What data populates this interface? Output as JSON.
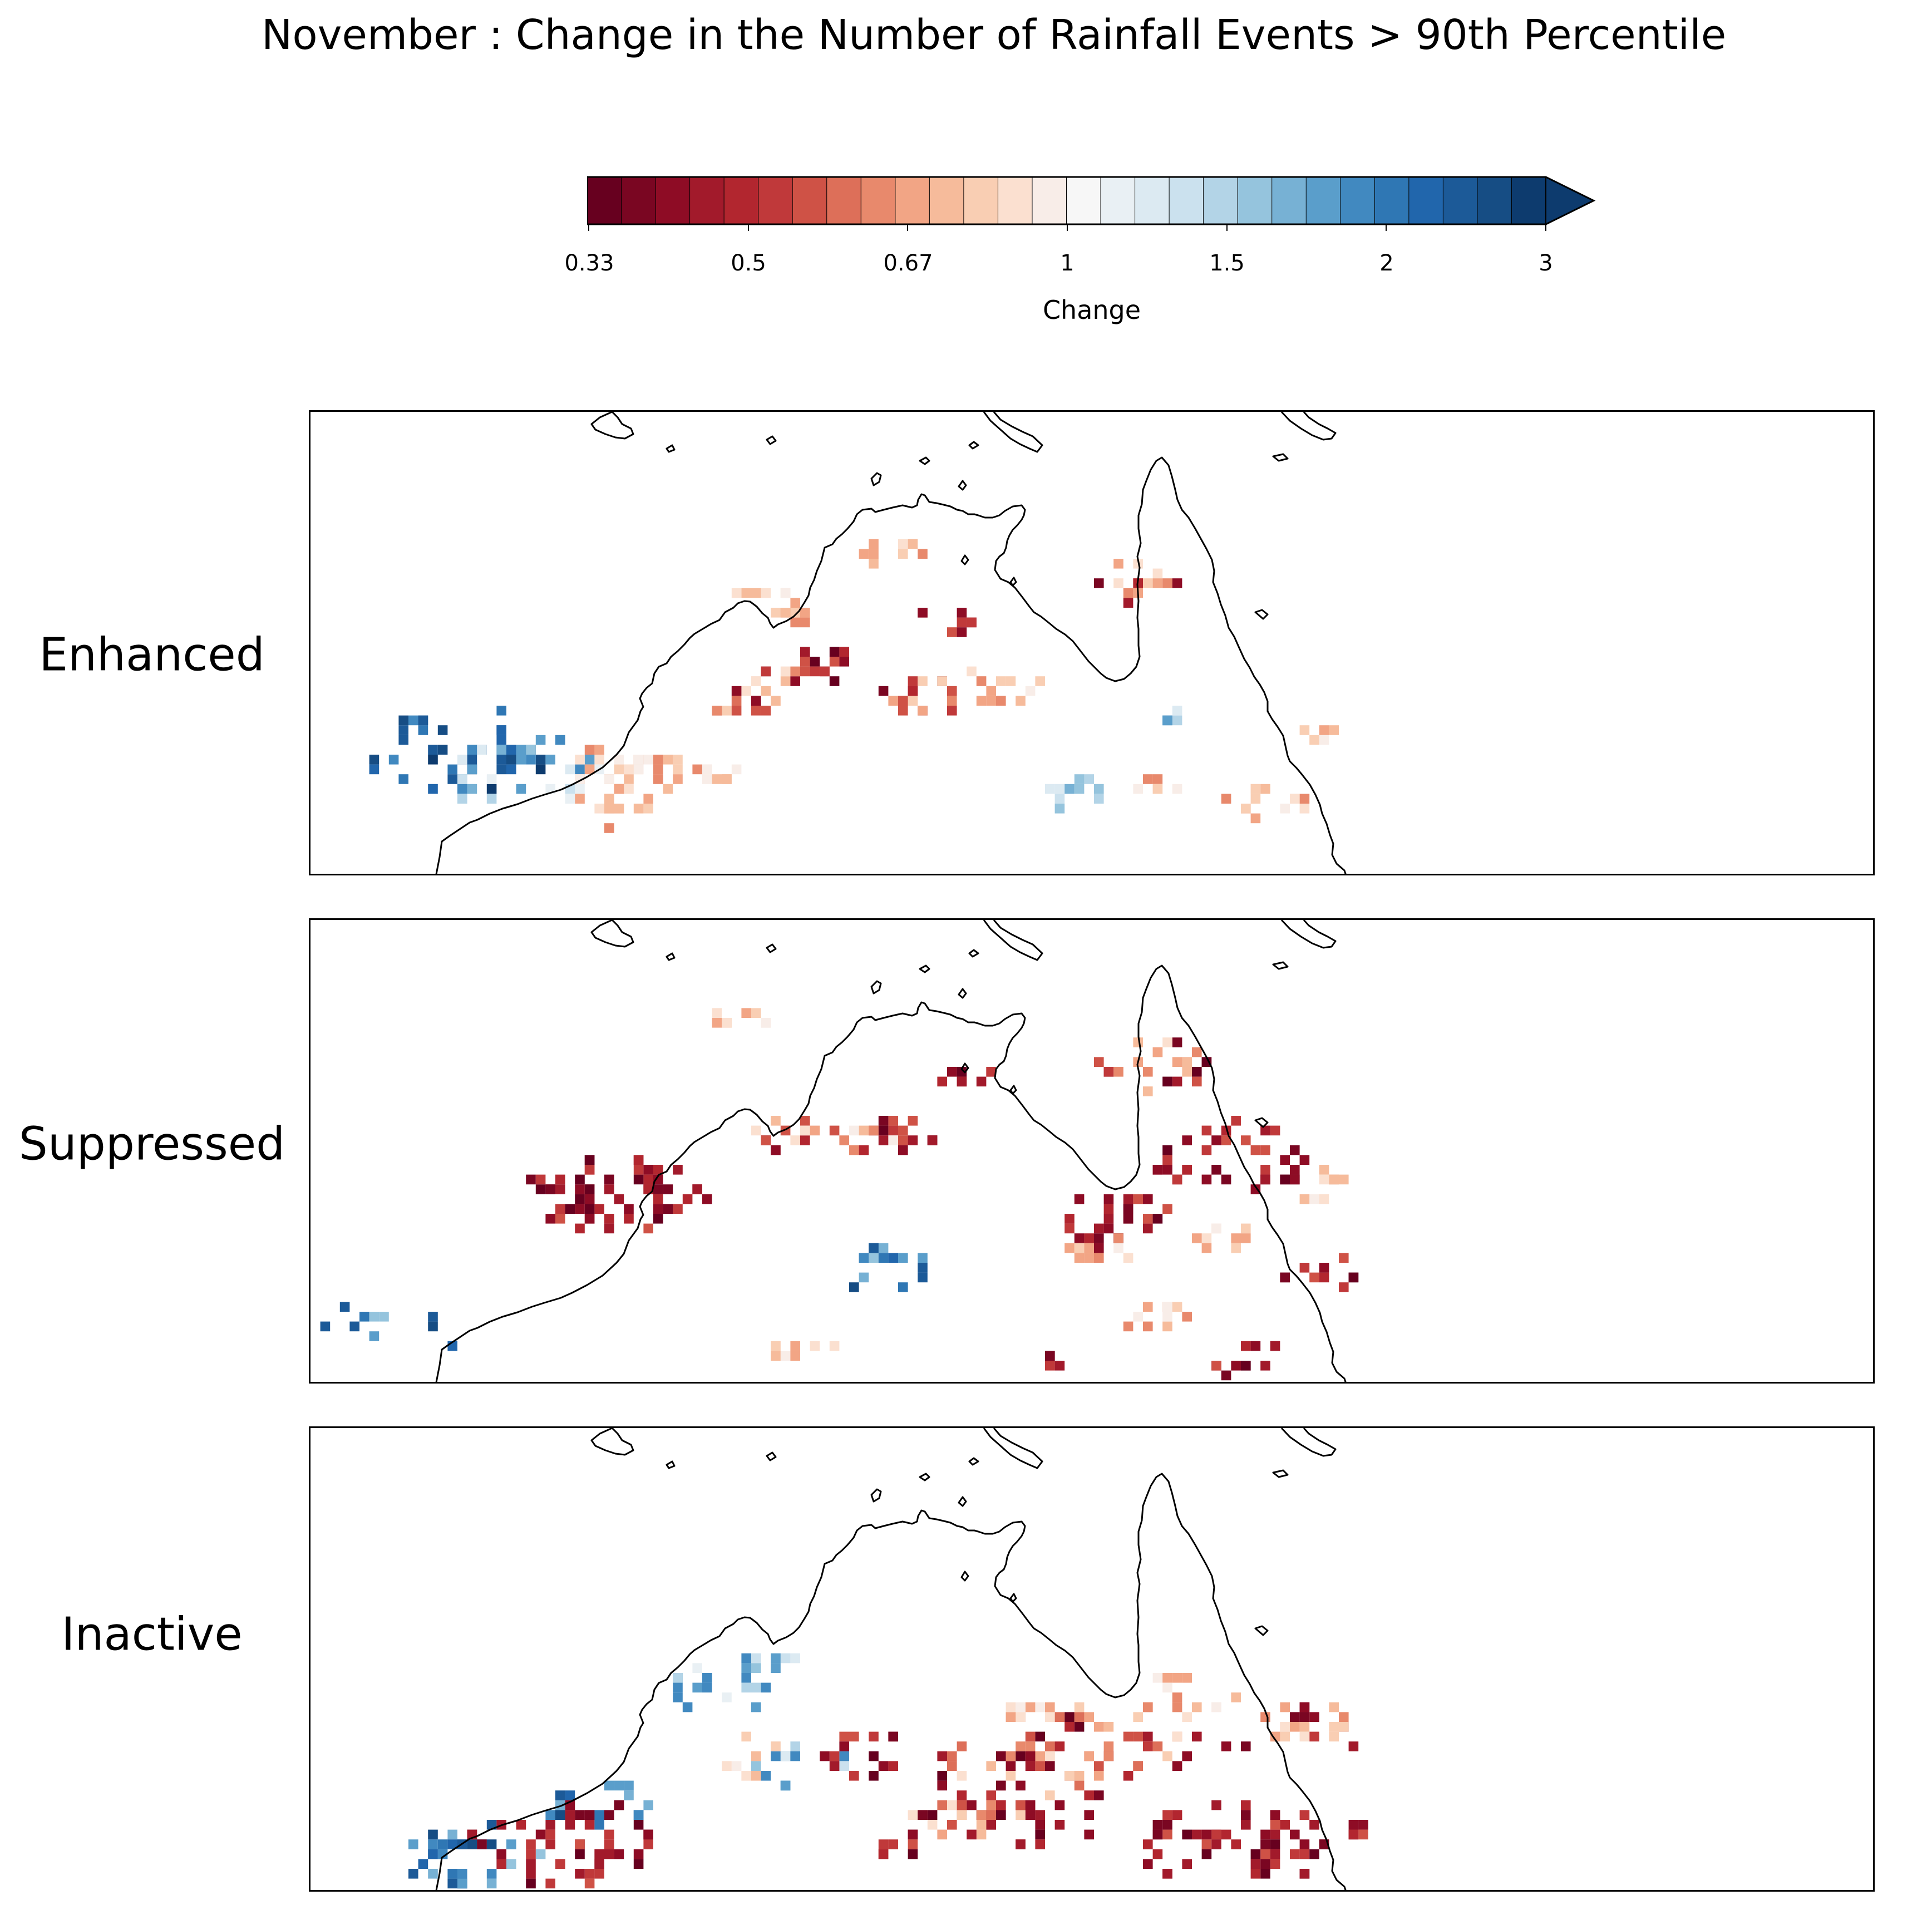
{
  "title": "November : Change in the Number of Rainfall Events > 90th Percentile",
  "colorbar": {
    "label": "Change",
    "ticks": [
      "0.33",
      "0.5",
      "0.67",
      "1",
      "1.5",
      "2",
      "3"
    ],
    "extend": "max",
    "colors": [
      "#67001f",
      "#7a0622",
      "#8e0c25",
      "#a21a2b",
      "#b2262f",
      "#c0393a",
      "#cf5246",
      "#dd6f59",
      "#e8896c",
      "#f2a585",
      "#f6bb9b",
      "#f9ceb3",
      "#fbe0d0",
      "#f8ede8",
      "#f7f7f7",
      "#e9f0f4",
      "#dceaf2",
      "#cbe1ee",
      "#b3d4e7",
      "#95c4dd",
      "#77b1d4",
      "#5a9ecb",
      "#4189c0",
      "#2f77b4",
      "#2166ac",
      "#1c5a98",
      "#164d84",
      "#0d3b6e"
    ]
  },
  "panels": [
    {
      "label": "Enhanced"
    },
    {
      "label": "Suppressed"
    },
    {
      "label": "Inactive"
    }
  ]
}
